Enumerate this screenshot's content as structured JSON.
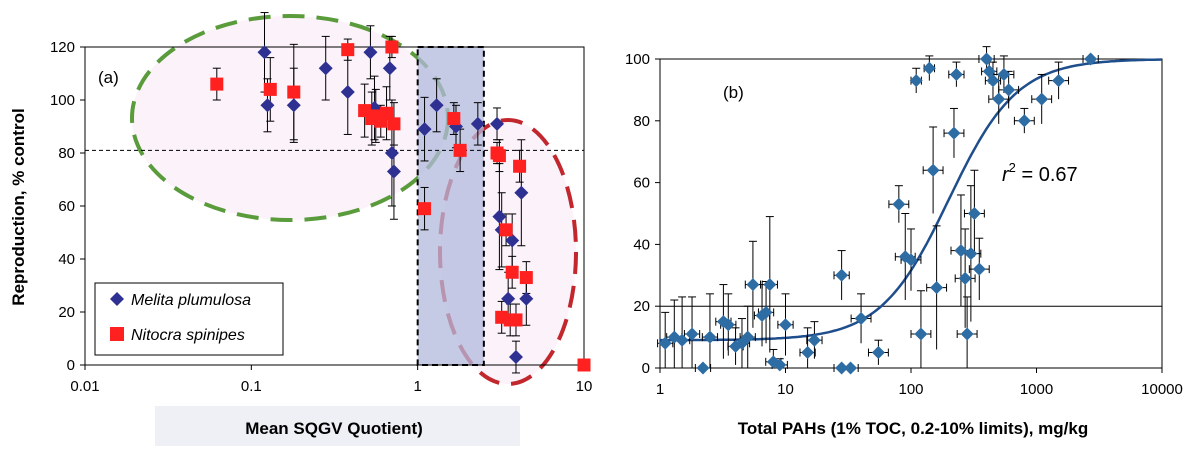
{
  "chart_data": [
    {
      "type": "scatter",
      "panel_label": "(a)",
      "xlabel": "Mean SQGV Quotient)",
      "ylabel": "Reproduction, % control",
      "x_scale": "log",
      "xlim": [
        0.01,
        10
      ],
      "ylim": [
        0,
        120
      ],
      "x_ticks": [
        0.01,
        0.1,
        1,
        10
      ],
      "x_tick_labels": [
        "0.01",
        "0.1",
        "1",
        "10"
      ],
      "y_ticks": [
        0,
        20,
        40,
        60,
        80,
        100,
        120
      ],
      "y_tick_labels": [
        "0",
        "20",
        "40",
        "60",
        "80",
        "100",
        "120"
      ],
      "reference_line_y": 81,
      "shaded_region_x": [
        1,
        2.5
      ],
      "legend_position": "bottom-left",
      "series": [
        {
          "name": "Melita plumulosa",
          "marker": "diamond",
          "color": "#2e3192",
          "x": [
            0.12,
            0.125,
            0.18,
            0.28,
            0.38,
            0.52,
            0.55,
            0.68,
            0.7,
            0.72,
            1.1,
            1.3,
            1.7,
            2.3,
            3.0,
            3.1,
            3.2,
            3.5,
            3.7,
            3.9,
            4.2,
            4.5
          ],
          "y": [
            118,
            98,
            98,
            112,
            103,
            118,
            97,
            112,
            80,
            73,
            89,
            98,
            90,
            91,
            91,
            56,
            51,
            25,
            47,
            3,
            65,
            25
          ],
          "err": [
            15,
            10,
            14,
            12,
            16,
            10,
            12,
            12,
            20,
            18,
            12,
            10,
            8,
            8,
            6,
            20,
            14,
            10,
            10,
            6,
            20,
            10
          ]
        },
        {
          "name": "Nitocra spinipes",
          "marker": "square",
          "color": "#ff2020",
          "x": [
            0.062,
            0.13,
            0.18,
            0.38,
            0.48,
            0.53,
            0.56,
            0.6,
            0.65,
            0.7,
            0.72,
            1.1,
            1.65,
            1.8,
            3.0,
            3.1,
            3.2,
            3.4,
            3.6,
            3.7,
            3.9,
            4.1,
            4.5,
            10
          ],
          "y": [
            106,
            104,
            103,
            119,
            96,
            93,
            94,
            92,
            95,
            120,
            91,
            59,
            93,
            81,
            80,
            79,
            18,
            51,
            17,
            35,
            17,
            75,
            33,
            0
          ],
          "err": [
            6,
            12,
            18,
            4,
            10,
            10,
            10,
            6,
            10,
            4,
            8,
            8,
            6,
            8,
            4,
            6,
            6,
            6,
            6,
            6,
            6,
            6,
            6,
            0
          ]
        }
      ]
    },
    {
      "type": "scatter",
      "panel_label": "(b)",
      "xlabel": "Total PAHs (1% TOC, 0.2-10% limits), mg/kg",
      "ylabel": "",
      "x_scale": "log",
      "xlim": [
        1,
        10000
      ],
      "ylim": [
        0,
        100
      ],
      "x_ticks": [
        1,
        10,
        100,
        1000,
        10000
      ],
      "x_tick_labels": [
        "1",
        "10",
        "100",
        "1000",
        "10000"
      ],
      "y_ticks": [
        0,
        20,
        40,
        60,
        80,
        100
      ],
      "y_tick_labels": [
        "0",
        "20",
        "40",
        "60",
        "80",
        "100"
      ],
      "reference_line_y": 20,
      "annotation": {
        "r_symbol": "r",
        "superscript": "2",
        "text": " = 0.67"
      },
      "fit_curve": {
        "type": "logistic",
        "ec50": 200,
        "slope": 1.6,
        "min": 9,
        "max": 100,
        "color": "#1f4e8c"
      },
      "series": [
        {
          "name": "",
          "marker": "diamond",
          "color": "#2e6da4",
          "x": [
            1.1,
            1.3,
            1.5,
            1.8,
            2.2,
            2.5,
            3.2,
            3.5,
            4,
            4.5,
            5,
            5.5,
            6.5,
            7,
            7.5,
            8,
            9,
            10,
            15,
            17,
            28,
            28,
            33,
            40,
            55,
            80,
            90,
            100,
            110,
            120,
            140,
            150,
            160,
            220,
            230,
            250,
            270,
            280,
            300,
            320,
            350,
            400,
            420,
            450,
            500,
            550,
            600,
            800,
            1100,
            1500,
            2700
          ],
          "y": [
            8,
            10,
            9,
            11,
            0,
            10,
            15,
            14,
            7,
            8,
            10,
            27,
            17,
            18,
            27,
            2,
            1,
            14,
            5,
            9,
            30,
            0,
            0,
            16,
            5,
            53,
            36,
            35,
            93,
            11,
            97,
            64,
            26,
            76,
            95,
            38,
            29,
            11,
            37,
            50,
            32,
            100,
            96,
            93,
            87,
            95,
            90,
            80,
            87,
            93,
            100
          ],
          "xerr_factor": [
            1.15,
            1.15,
            1.15,
            1.15,
            1.15,
            1.15,
            1.15,
            1.15,
            1.15,
            1.15,
            1.15,
            1.15,
            1.15,
            1.15,
            1.15,
            1.15,
            1.15,
            1.15,
            1.15,
            1.15,
            1.15,
            1.15,
            1.15,
            1.2,
            1.2,
            1.2,
            1.2,
            1.2,
            1.1,
            1.2,
            1.1,
            1.2,
            1.2,
            1.2,
            1.15,
            1.2,
            1.2,
            1.2,
            1.2,
            1.2,
            1.2,
            1.15,
            1.15,
            1.15,
            1.2,
            1.2,
            1.2,
            1.2,
            1.2,
            1.2,
            1.15
          ],
          "yerr": [
            10,
            12,
            14,
            12,
            0,
            14,
            12,
            10,
            6,
            8,
            10,
            14,
            10,
            10,
            22,
            4,
            2,
            10,
            8,
            6,
            8,
            0,
            0,
            8,
            4,
            6,
            14,
            10,
            4,
            14,
            4,
            14,
            20,
            8,
            4,
            18,
            16,
            12,
            22,
            14,
            10,
            4,
            4,
            6,
            8,
            6,
            6,
            4,
            8,
            6,
            0
          ]
        }
      ]
    }
  ]
}
